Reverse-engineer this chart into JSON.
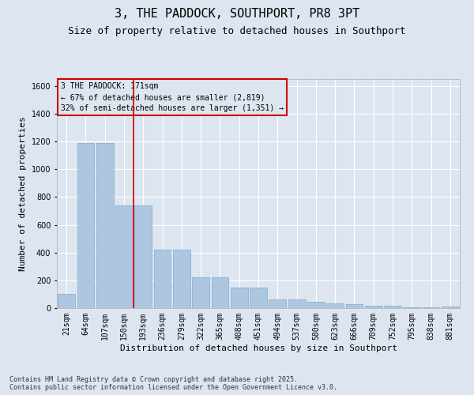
{
  "title": "3, THE PADDOCK, SOUTHPORT, PR8 3PT",
  "subtitle": "Size of property relative to detached houses in Southport",
  "xlabel": "Distribution of detached houses by size in Southport",
  "ylabel": "Number of detached properties",
  "categories": [
    "21sqm",
    "64sqm",
    "107sqm",
    "150sqm",
    "193sqm",
    "236sqm",
    "279sqm",
    "322sqm",
    "365sqm",
    "408sqm",
    "451sqm",
    "494sqm",
    "537sqm",
    "580sqm",
    "623sqm",
    "666sqm",
    "709sqm",
    "752sqm",
    "795sqm",
    "838sqm",
    "881sqm"
  ],
  "values": [
    100,
    1190,
    1190,
    740,
    740,
    420,
    420,
    220,
    220,
    150,
    150,
    65,
    65,
    48,
    35,
    30,
    18,
    18,
    8,
    8,
    14
  ],
  "bar_color": "#aec6e0",
  "bar_edge_color": "#7aaecc",
  "background_color": "#dde6f0",
  "grid_color": "#ffffff",
  "vline_x": 3.5,
  "vline_color": "#cc0000",
  "annotation_text": "3 THE PADDOCK: 171sqm\n← 67% of detached houses are smaller (2,819)\n32% of semi-detached houses are larger (1,351) →",
  "annotation_box_color": "#cc0000",
  "footer": "Contains HM Land Registry data © Crown copyright and database right 2025.\nContains public sector information licensed under the Open Government Licence v3.0.",
  "ylim": [
    0,
    1650
  ],
  "title_fontsize": 11,
  "subtitle_fontsize": 9,
  "ylabel_fontsize": 8,
  "xlabel_fontsize": 8,
  "tick_fontsize": 7,
  "footer_fontsize": 6
}
